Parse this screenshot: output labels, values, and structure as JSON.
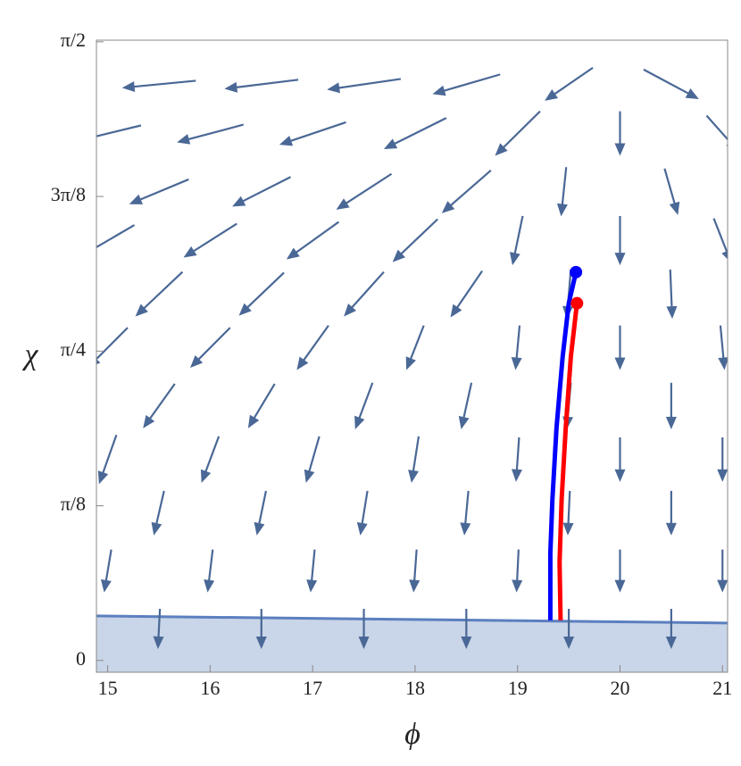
{
  "chart_data": {
    "type": "vectorfield",
    "x_label": "ϕ",
    "y_label": "χ",
    "xlim": [
      14.89,
      21.05
    ],
    "ylim": [
      -0.03,
      1.575
    ],
    "xticks": [
      15,
      16,
      17,
      18,
      19,
      20,
      21
    ],
    "yticks": [
      0,
      {
        "value": 0.3927,
        "label": "π/8"
      },
      {
        "value": 0.7854,
        "label": "π/4"
      },
      {
        "value": 1.1781,
        "label": "3π/8"
      },
      {
        "value": 1.5708,
        "label": "π/2"
      }
    ],
    "arrow_color": "#4a6896",
    "field": [
      {
        "y": 1.463,
        "x": [
          15.5,
          16.5,
          17.5,
          18.5,
          19.5,
          20.5
        ],
        "dx": [
          -0.72,
          -0.72,
          -0.72,
          -0.66,
          -0.47,
          0.54
        ],
        "dy": [
          -0.018,
          -0.023,
          -0.027,
          -0.05,
          -0.084,
          -0.075
        ]
      },
      {
        "y": 1.338,
        "x": [
          15,
          16,
          17,
          18,
          19,
          20,
          21
        ],
        "dx": [
          -0.65,
          -0.65,
          -0.65,
          -0.61,
          -0.44,
          0,
          0.31
        ],
        "dy": [
          -0.041,
          -0.045,
          -0.057,
          -0.079,
          -0.113,
          -0.113,
          -0.091
        ]
      },
      {
        "y": 1.19,
        "x": [
          15.5,
          16.5,
          17.5,
          18.5,
          19.45,
          20.5
        ],
        "dx": [
          -0.58,
          -0.57,
          -0.54,
          -0.48,
          -0.05,
          0.13
        ],
        "dy": [
          -0.063,
          -0.075,
          -0.091,
          -0.109,
          -0.125,
          -0.118
        ]
      },
      {
        "y": 1.066,
        "x": [
          15,
          16,
          17,
          18,
          19,
          20,
          21
        ],
        "dx": [
          -0.52,
          -0.52,
          -0.51,
          -0.44,
          -0.1,
          0,
          0.17
        ],
        "dy": [
          -0.079,
          -0.086,
          -0.095,
          -0.109,
          -0.125,
          -0.125,
          -0.113
        ]
      },
      {
        "y": 0.93,
        "x": [
          15.5,
          16.5,
          17.5,
          18.5,
          19.5,
          20.5
        ],
        "dx": [
          -0.46,
          -0.44,
          -0.39,
          -0.31,
          -0.04,
          0.02
        ],
        "dy": [
          -0.113,
          -0.109,
          -0.113,
          -0.118,
          -0.125,
          -0.125
        ]
      },
      {
        "y": 0.794,
        "x": [
          15,
          16,
          17,
          18,
          19,
          20,
          21
        ],
        "dx": [
          -0.39,
          -0.39,
          -0.31,
          -0.17,
          -0.04,
          0,
          0.04
        ],
        "dy": [
          -0.102,
          -0.102,
          -0.113,
          -0.113,
          -0.113,
          -0.113,
          -0.113
        ]
      },
      {
        "y": 0.646,
        "x": [
          15.5,
          16.5,
          17.5,
          18.5,
          19.5,
          20.5
        ],
        "dx": [
          -0.31,
          -0.26,
          -0.17,
          -0.1,
          -0.04,
          0
        ],
        "dy": [
          -0.113,
          -0.113,
          -0.118,
          -0.118,
          -0.118,
          -0.118
        ]
      },
      {
        "y": 0.51,
        "x": [
          15,
          16,
          17,
          18,
          19,
          20,
          21
        ],
        "dx": [
          -0.17,
          -0.17,
          -0.13,
          -0.07,
          -0.03,
          0,
          0
        ],
        "dy": [
          -0.125,
          -0.118,
          -0.118,
          -0.118,
          -0.113,
          -0.113,
          -0.113
        ]
      },
      {
        "y": 0.374,
        "x": [
          15.5,
          16.5,
          17.5,
          18.5,
          19.5,
          20.5
        ],
        "dx": [
          -0.1,
          -0.09,
          -0.07,
          -0.04,
          -0.02,
          0
        ],
        "dy": [
          -0.113,
          -0.113,
          -0.113,
          -0.113,
          -0.113,
          -0.113
        ]
      },
      {
        "y": 0.227,
        "x": [
          15,
          16,
          17,
          18,
          19,
          20,
          21
        ],
        "dx": [
          -0.07,
          -0.05,
          -0.04,
          -0.03,
          -0.02,
          0,
          0
        ],
        "dy": [
          -0.109,
          -0.109,
          -0.109,
          -0.109,
          -0.109,
          -0.109,
          -0.109
        ]
      },
      {
        "y": 0.08,
        "x": [
          15.5,
          16.5,
          17.5,
          18.5,
          19.5,
          20.5
        ],
        "dx": [
          -0.02,
          0,
          0,
          0,
          0,
          0
        ],
        "dy": [
          -0.102,
          -0.102,
          -0.102,
          -0.102,
          -0.102,
          -0.102
        ]
      }
    ],
    "region": {
      "x": [
        14.89,
        21.05
      ],
      "y": [
        0.113,
        0.095
      ],
      "color": "#5b7fbf",
      "fill": "#c9d5e8"
    },
    "series": [
      {
        "color": "#0000ff",
        "x": [
          19.57,
          19.5,
          19.44,
          19.38,
          19.34,
          19.32,
          19.32
        ],
        "y": [
          0.986,
          0.907,
          0.771,
          0.59,
          0.408,
          0.272,
          0.102
        ]
      },
      {
        "color": "#ff0000",
        "x": [
          19.58,
          19.52,
          19.47,
          19.43,
          19.41,
          19.42
        ],
        "y": [
          0.907,
          0.771,
          0.59,
          0.408,
          0.249,
          0.102
        ]
      }
    ]
  }
}
